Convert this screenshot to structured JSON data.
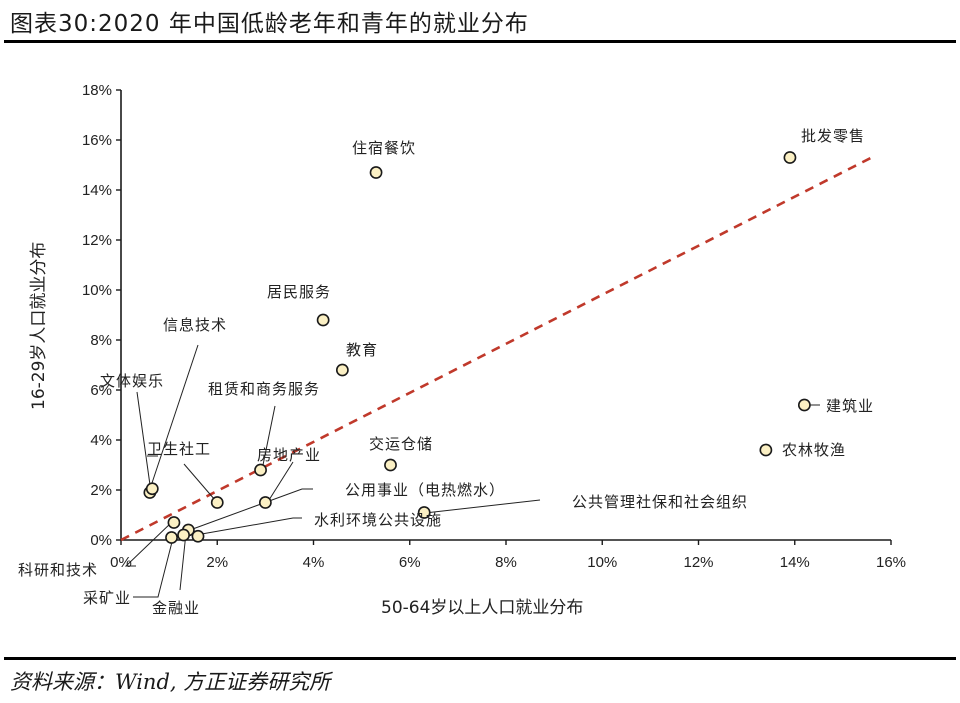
{
  "header": {
    "title": "图表30:2020 年中国低龄老年和青年的就业分布"
  },
  "footer": {
    "source": "资料来源：Wind, 方正证券研究所"
  },
  "style": {
    "marker_fill": "#fbf0c4",
    "marker_stroke": "#1a1a1a",
    "reference_line_color": "#c0392b",
    "axis_color": "#1a1a1a"
  },
  "chart_data": {
    "type": "scatter",
    "title": "2020 年中国低龄老年和青年的就业分布",
    "xlabel": "50-64岁以上人口就业分布",
    "ylabel": "16-29岁人口就业分布",
    "xlim": [
      0,
      16
    ],
    "ylim": [
      0,
      18
    ],
    "unit": "%",
    "x_ticks": [
      "0%",
      "2%",
      "4%",
      "6%",
      "8%",
      "10%",
      "12%",
      "14%",
      "16%"
    ],
    "y_ticks": [
      "0%",
      "2%",
      "4%",
      "6%",
      "8%",
      "10%",
      "12%",
      "14%",
      "16%",
      "18%"
    ],
    "grid": false,
    "legend": null,
    "reference_line": {
      "style": "dashed",
      "from": [
        0,
        0
      ],
      "to": [
        15.7,
        15.4
      ],
      "description": "y = x 参考线"
    },
    "points": [
      {
        "label": "批发零售",
        "x": 13.9,
        "y": 15.3
      },
      {
        "label": "住宿餐饮",
        "x": 5.3,
        "y": 14.7
      },
      {
        "label": "居民服务",
        "x": 4.2,
        "y": 8.8
      },
      {
        "label": "教育",
        "x": 4.6,
        "y": 6.8
      },
      {
        "label": "建筑业",
        "x": 14.2,
        "y": 5.4
      },
      {
        "label": "农林牧渔",
        "x": 13.4,
        "y": 3.6
      },
      {
        "label": "交运仓储",
        "x": 5.6,
        "y": 3.0
      },
      {
        "label": "租赁和商务服务",
        "x": 2.9,
        "y": 2.8
      },
      {
        "label": "文体娱乐",
        "x": 0.6,
        "y": 1.9
      },
      {
        "label": "信息技术",
        "x": 0.65,
        "y": 2.05
      },
      {
        "label": "卫生社工",
        "x": 2.0,
        "y": 1.5
      },
      {
        "label": "房地产业",
        "x": 3.0,
        "y": 1.5
      },
      {
        "label": "公共管理社保和社会组织",
        "x": 6.3,
        "y": 1.1
      },
      {
        "label": "科研和技术",
        "x": 1.1,
        "y": 0.7
      },
      {
        "label": "公用事业（电热燃水）",
        "x": 1.4,
        "y": 0.4
      },
      {
        "label": "采矿业",
        "x": 1.05,
        "y": 0.1
      },
      {
        "label": "金融业",
        "x": 1.3,
        "y": 0.2
      },
      {
        "label": "水利环境公共设施",
        "x": 1.6,
        "y": 0.15
      }
    ]
  }
}
